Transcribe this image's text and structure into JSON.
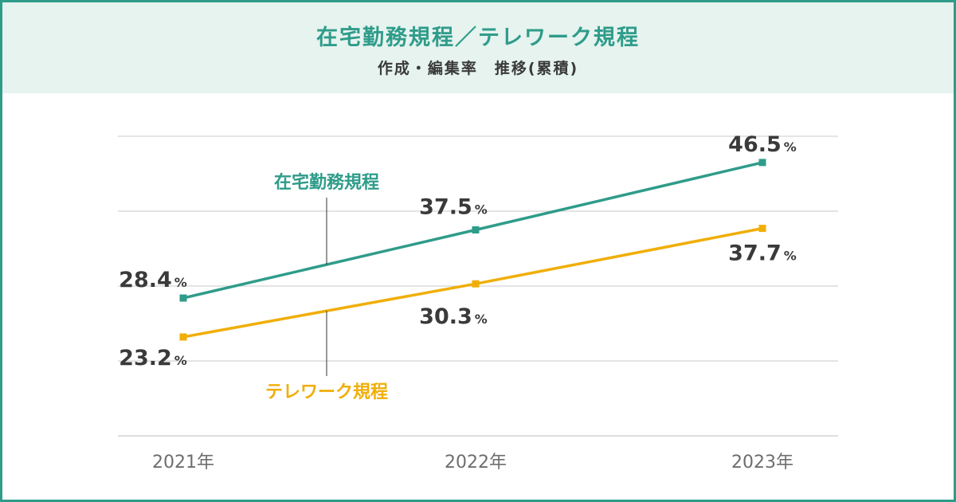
{
  "header": {
    "title": "在宅勤務規程／テレワーク規程",
    "subtitle": "作成・編集率　推移(累積)"
  },
  "chart_data": {
    "type": "line",
    "categories": [
      "2021年",
      "2022年",
      "2023年"
    ],
    "ylim": [
      10,
      50
    ],
    "grid": true,
    "series": [
      {
        "name": "在宅勤務規程",
        "color": "#2f9c8a",
        "values": [
          28.4,
          37.5,
          46.5
        ],
        "value_labels": [
          "28.4",
          "37.5",
          "46.5"
        ],
        "label_side": [
          "above",
          "above",
          "above"
        ]
      },
      {
        "name": "テレワーク規程",
        "color": "#f0ae08",
        "values": [
          23.2,
          30.3,
          37.7
        ],
        "value_labels": [
          "23.2",
          "30.3",
          "37.7"
        ],
        "label_side": [
          "below",
          "below",
          "below"
        ]
      }
    ],
    "unit": "%"
  }
}
